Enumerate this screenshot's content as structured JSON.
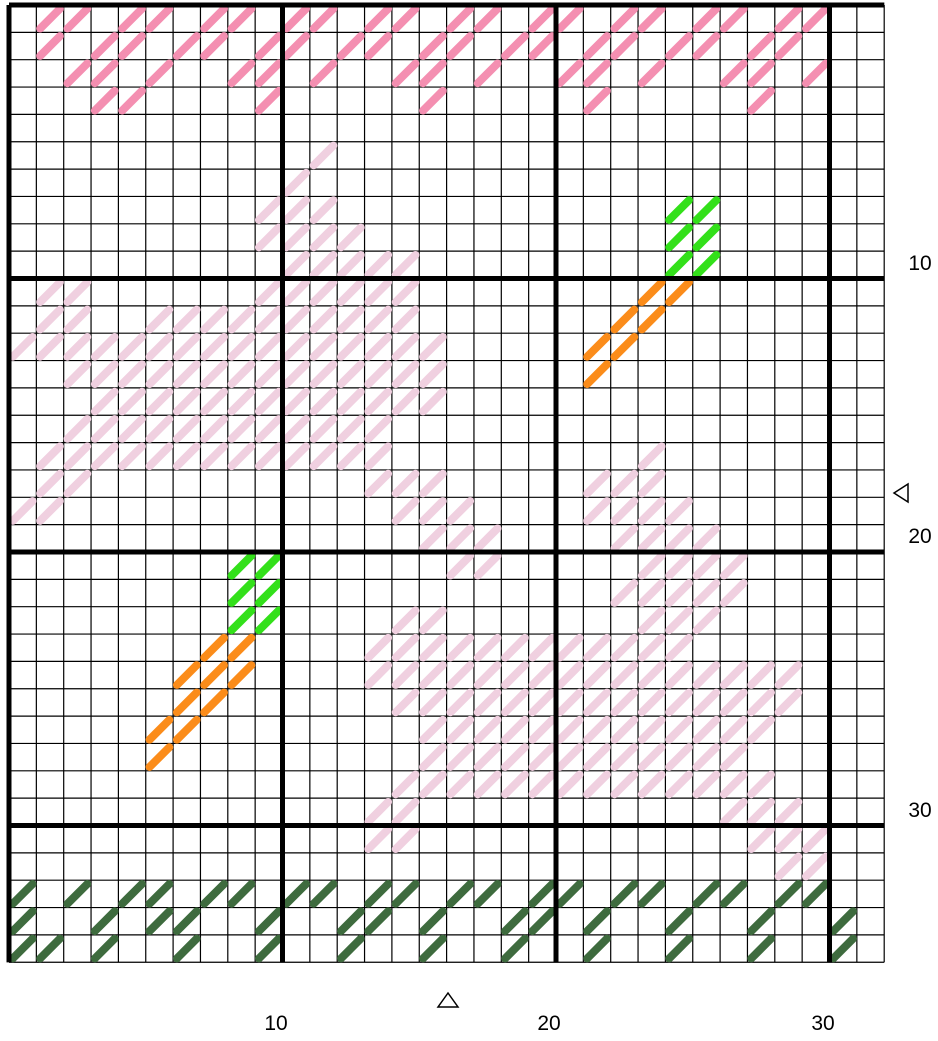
{
  "colors": {
    "background": "#ffffff",
    "grid_line": "#000000",
    "pink_dark": "#f48fb1",
    "pink_light": "#f0d0e0",
    "green_bright": "#33e01a",
    "orange": "#fb8c1a",
    "green_dark": "#3e6b3e"
  },
  "grid": {
    "columns": 32,
    "rows": 35,
    "major_every": 10
  },
  "axis_labels": {
    "x": [
      "10",
      "20",
      "30"
    ],
    "y": [
      "10",
      "20",
      "30"
    ]
  },
  "center_markers": {
    "x_col": 16,
    "y_row": 18,
    "symbol": "triangle"
  },
  "stitch_groups": [
    {
      "name": "pink-dark-top-row",
      "color": "pink_dark",
      "cells": [
        [
          2,
          1
        ],
        [
          3,
          1
        ],
        [
          5,
          1
        ],
        [
          6,
          1
        ],
        [
          8,
          1
        ],
        [
          9,
          1
        ],
        [
          11,
          1
        ],
        [
          12,
          1
        ],
        [
          14,
          1
        ],
        [
          15,
          1
        ],
        [
          17,
          1
        ],
        [
          18,
          1
        ],
        [
          20,
          1
        ],
        [
          21,
          1
        ],
        [
          23,
          1
        ],
        [
          24,
          1
        ],
        [
          26,
          1
        ],
        [
          27,
          1
        ],
        [
          29,
          1
        ],
        [
          30,
          1
        ],
        [
          2,
          2
        ],
        [
          4,
          2
        ],
        [
          5,
          2
        ],
        [
          7,
          2
        ],
        [
          8,
          2
        ],
        [
          10,
          2
        ],
        [
          11,
          2
        ],
        [
          13,
          2
        ],
        [
          14,
          2
        ],
        [
          16,
          2
        ],
        [
          17,
          2
        ],
        [
          19,
          2
        ],
        [
          20,
          2
        ],
        [
          22,
          2
        ],
        [
          23,
          2
        ],
        [
          25,
          2
        ],
        [
          26,
          2
        ],
        [
          28,
          2
        ],
        [
          29,
          2
        ],
        [
          3,
          3
        ],
        [
          4,
          3
        ],
        [
          6,
          3
        ],
        [
          9,
          3
        ],
        [
          10,
          3
        ],
        [
          12,
          3
        ],
        [
          15,
          3
        ],
        [
          16,
          3
        ],
        [
          18,
          3
        ],
        [
          21,
          3
        ],
        [
          22,
          3
        ],
        [
          24,
          3
        ],
        [
          27,
          3
        ],
        [
          28,
          3
        ],
        [
          30,
          3
        ],
        [
          4,
          4
        ],
        [
          5,
          4
        ],
        [
          10,
          4
        ],
        [
          16,
          4
        ],
        [
          22,
          4
        ],
        [
          28,
          4
        ]
      ]
    },
    {
      "name": "pink-light-motif-upper",
      "color": "pink_light",
      "cells": [
        [
          12,
          6
        ],
        [
          11,
          7
        ],
        [
          10,
          8
        ],
        [
          11,
          8
        ],
        [
          12,
          8
        ],
        [
          10,
          9
        ],
        [
          11,
          9
        ],
        [
          12,
          9
        ],
        [
          13,
          9
        ],
        [
          11,
          10
        ],
        [
          12,
          10
        ],
        [
          13,
          10
        ],
        [
          14,
          10
        ],
        [
          15,
          10
        ],
        [
          2,
          11
        ],
        [
          3,
          11
        ],
        [
          10,
          11
        ],
        [
          11,
          11
        ],
        [
          12,
          11
        ],
        [
          13,
          11
        ],
        [
          14,
          11
        ],
        [
          15,
          11
        ],
        [
          2,
          12
        ],
        [
          3,
          12
        ],
        [
          6,
          12
        ],
        [
          7,
          12
        ],
        [
          8,
          12
        ],
        [
          9,
          12
        ],
        [
          10,
          12
        ],
        [
          11,
          12
        ],
        [
          12,
          12
        ],
        [
          13,
          12
        ],
        [
          14,
          12
        ],
        [
          15,
          12
        ],
        [
          1,
          13
        ],
        [
          2,
          13
        ],
        [
          3,
          13
        ],
        [
          4,
          13
        ],
        [
          5,
          13
        ],
        [
          6,
          13
        ],
        [
          7,
          13
        ],
        [
          8,
          13
        ],
        [
          9,
          13
        ],
        [
          10,
          13
        ],
        [
          11,
          13
        ],
        [
          12,
          13
        ],
        [
          13,
          13
        ],
        [
          14,
          13
        ],
        [
          15,
          13
        ],
        [
          16,
          13
        ],
        [
          3,
          14
        ],
        [
          4,
          14
        ],
        [
          5,
          14
        ],
        [
          6,
          14
        ],
        [
          7,
          14
        ],
        [
          8,
          14
        ],
        [
          9,
          14
        ],
        [
          10,
          14
        ],
        [
          11,
          14
        ],
        [
          12,
          14
        ],
        [
          13,
          14
        ],
        [
          14,
          14
        ],
        [
          15,
          14
        ],
        [
          16,
          14
        ],
        [
          4,
          15
        ],
        [
          5,
          15
        ],
        [
          6,
          15
        ],
        [
          7,
          15
        ],
        [
          8,
          15
        ],
        [
          9,
          15
        ],
        [
          10,
          15
        ],
        [
          11,
          15
        ],
        [
          12,
          15
        ],
        [
          13,
          15
        ],
        [
          14,
          15
        ],
        [
          15,
          15
        ],
        [
          16,
          15
        ],
        [
          3,
          16
        ],
        [
          4,
          16
        ],
        [
          5,
          16
        ],
        [
          6,
          16
        ],
        [
          7,
          16
        ],
        [
          8,
          16
        ],
        [
          9,
          16
        ],
        [
          10,
          16
        ],
        [
          11,
          16
        ],
        [
          12,
          16
        ],
        [
          13,
          16
        ],
        [
          14,
          16
        ],
        [
          2,
          17
        ],
        [
          3,
          17
        ],
        [
          4,
          17
        ],
        [
          5,
          17
        ],
        [
          6,
          17
        ],
        [
          7,
          17
        ],
        [
          8,
          17
        ],
        [
          9,
          17
        ],
        [
          10,
          17
        ],
        [
          11,
          17
        ],
        [
          12,
          17
        ],
        [
          13,
          17
        ],
        [
          14,
          17
        ],
        [
          2,
          18
        ],
        [
          3,
          18
        ],
        [
          14,
          18
        ],
        [
          15,
          18
        ],
        [
          16,
          18
        ],
        [
          1,
          19
        ],
        [
          2,
          19
        ],
        [
          15,
          19
        ],
        [
          16,
          19
        ],
        [
          17,
          19
        ],
        [
          16,
          20
        ],
        [
          17,
          20
        ],
        [
          18,
          20
        ],
        [
          17,
          21
        ],
        [
          18,
          21
        ]
      ]
    },
    {
      "name": "pink-light-motif-lower",
      "color": "pink_light",
      "cells": [
        [
          24,
          17
        ],
        [
          22,
          18
        ],
        [
          23,
          18
        ],
        [
          24,
          18
        ],
        [
          22,
          19
        ],
        [
          23,
          19
        ],
        [
          24,
          19
        ],
        [
          25,
          19
        ],
        [
          23,
          20
        ],
        [
          24,
          20
        ],
        [
          25,
          20
        ],
        [
          26,
          20
        ],
        [
          24,
          21
        ],
        [
          25,
          21
        ],
        [
          26,
          21
        ],
        [
          27,
          21
        ],
        [
          23,
          22
        ],
        [
          24,
          22
        ],
        [
          25,
          22
        ],
        [
          26,
          22
        ],
        [
          27,
          22
        ],
        [
          15,
          23
        ],
        [
          16,
          23
        ],
        [
          24,
          23
        ],
        [
          25,
          23
        ],
        [
          26,
          23
        ],
        [
          14,
          24
        ],
        [
          15,
          24
        ],
        [
          16,
          24
        ],
        [
          17,
          24
        ],
        [
          18,
          24
        ],
        [
          19,
          24
        ],
        [
          20,
          24
        ],
        [
          21,
          24
        ],
        [
          22,
          24
        ],
        [
          23,
          24
        ],
        [
          24,
          24
        ],
        [
          25,
          24
        ],
        [
          14,
          25
        ],
        [
          15,
          25
        ],
        [
          16,
          25
        ],
        [
          17,
          25
        ],
        [
          18,
          25
        ],
        [
          19,
          25
        ],
        [
          20,
          25
        ],
        [
          21,
          25
        ],
        [
          22,
          25
        ],
        [
          23,
          25
        ],
        [
          24,
          25
        ],
        [
          25,
          25
        ],
        [
          26,
          25
        ],
        [
          27,
          25
        ],
        [
          28,
          25
        ],
        [
          29,
          25
        ],
        [
          15,
          26
        ],
        [
          16,
          26
        ],
        [
          17,
          26
        ],
        [
          18,
          26
        ],
        [
          19,
          26
        ],
        [
          20,
          26
        ],
        [
          21,
          26
        ],
        [
          22,
          26
        ],
        [
          23,
          26
        ],
        [
          24,
          26
        ],
        [
          25,
          26
        ],
        [
          26,
          26
        ],
        [
          27,
          26
        ],
        [
          28,
          26
        ],
        [
          29,
          26
        ],
        [
          16,
          27
        ],
        [
          17,
          27
        ],
        [
          18,
          27
        ],
        [
          19,
          27
        ],
        [
          20,
          27
        ],
        [
          21,
          27
        ],
        [
          22,
          27
        ],
        [
          23,
          27
        ],
        [
          24,
          27
        ],
        [
          25,
          27
        ],
        [
          26,
          27
        ],
        [
          27,
          27
        ],
        [
          28,
          27
        ],
        [
          16,
          28
        ],
        [
          17,
          28
        ],
        [
          18,
          28
        ],
        [
          19,
          28
        ],
        [
          20,
          28
        ],
        [
          21,
          28
        ],
        [
          22,
          28
        ],
        [
          23,
          28
        ],
        [
          24,
          28
        ],
        [
          25,
          28
        ],
        [
          26,
          28
        ],
        [
          27,
          28
        ],
        [
          15,
          29
        ],
        [
          16,
          29
        ],
        [
          17,
          29
        ],
        [
          18,
          29
        ],
        [
          19,
          29
        ],
        [
          20,
          29
        ],
        [
          21,
          29
        ],
        [
          22,
          29
        ],
        [
          23,
          29
        ],
        [
          24,
          29
        ],
        [
          25,
          29
        ],
        [
          26,
          29
        ],
        [
          27,
          29
        ],
        [
          28,
          29
        ],
        [
          14,
          30
        ],
        [
          15,
          30
        ],
        [
          27,
          30
        ],
        [
          28,
          30
        ],
        [
          29,
          30
        ],
        [
          14,
          31
        ],
        [
          15,
          31
        ],
        [
          28,
          31
        ],
        [
          29,
          31
        ],
        [
          30,
          31
        ],
        [
          29,
          32
        ],
        [
          30,
          32
        ]
      ]
    },
    {
      "name": "green-bright-stem-right",
      "color": "green_bright",
      "cells": [
        [
          25,
          8
        ],
        [
          26,
          8
        ],
        [
          25,
          9
        ],
        [
          26,
          9
        ],
        [
          25,
          10
        ],
        [
          26,
          10
        ]
      ]
    },
    {
      "name": "orange-stem-right",
      "color": "orange",
      "cells": [
        [
          24,
          11
        ],
        [
          25,
          11
        ],
        [
          23,
          12
        ],
        [
          24,
          12
        ],
        [
          22,
          13
        ],
        [
          23,
          13
        ],
        [
          22,
          14
        ]
      ]
    },
    {
      "name": "green-bright-stem-left",
      "color": "green_bright",
      "cells": [
        [
          9,
          21
        ],
        [
          10,
          21
        ],
        [
          9,
          22
        ],
        [
          10,
          22
        ],
        [
          9,
          23
        ],
        [
          10,
          23
        ]
      ]
    },
    {
      "name": "orange-stem-left",
      "color": "orange",
      "cells": [
        [
          8,
          24
        ],
        [
          9,
          24
        ],
        [
          7,
          25
        ],
        [
          8,
          25
        ],
        [
          9,
          25
        ],
        [
          7,
          26
        ],
        [
          8,
          26
        ],
        [
          6,
          27
        ],
        [
          7,
          27
        ],
        [
          6,
          28
        ]
      ]
    },
    {
      "name": "green-dark-bottom-row",
      "color": "green_dark",
      "cells": [
        [
          1,
          33
        ],
        [
          3,
          33
        ],
        [
          5,
          33
        ],
        [
          6,
          33
        ],
        [
          8,
          33
        ],
        [
          9,
          33
        ],
        [
          11,
          33
        ],
        [
          12,
          33
        ],
        [
          14,
          33
        ],
        [
          15,
          33
        ],
        [
          17,
          33
        ],
        [
          18,
          33
        ],
        [
          20,
          33
        ],
        [
          21,
          33
        ],
        [
          23,
          33
        ],
        [
          24,
          33
        ],
        [
          26,
          33
        ],
        [
          27,
          33
        ],
        [
          29,
          33
        ],
        [
          30,
          33
        ],
        [
          1,
          34
        ],
        [
          4,
          34
        ],
        [
          6,
          34
        ],
        [
          7,
          34
        ],
        [
          10,
          34
        ],
        [
          13,
          34
        ],
        [
          14,
          34
        ],
        [
          16,
          34
        ],
        [
          19,
          34
        ],
        [
          20,
          34
        ],
        [
          22,
          34
        ],
        [
          25,
          34
        ],
        [
          28,
          34
        ],
        [
          31,
          34
        ],
        [
          1,
          35
        ],
        [
          2,
          35
        ],
        [
          4,
          35
        ],
        [
          7,
          35
        ],
        [
          10,
          35
        ],
        [
          13,
          35
        ],
        [
          16,
          35
        ],
        [
          19,
          35
        ],
        [
          22,
          35
        ],
        [
          25,
          35
        ],
        [
          28,
          35
        ],
        [
          31,
          35
        ]
      ]
    }
  ]
}
